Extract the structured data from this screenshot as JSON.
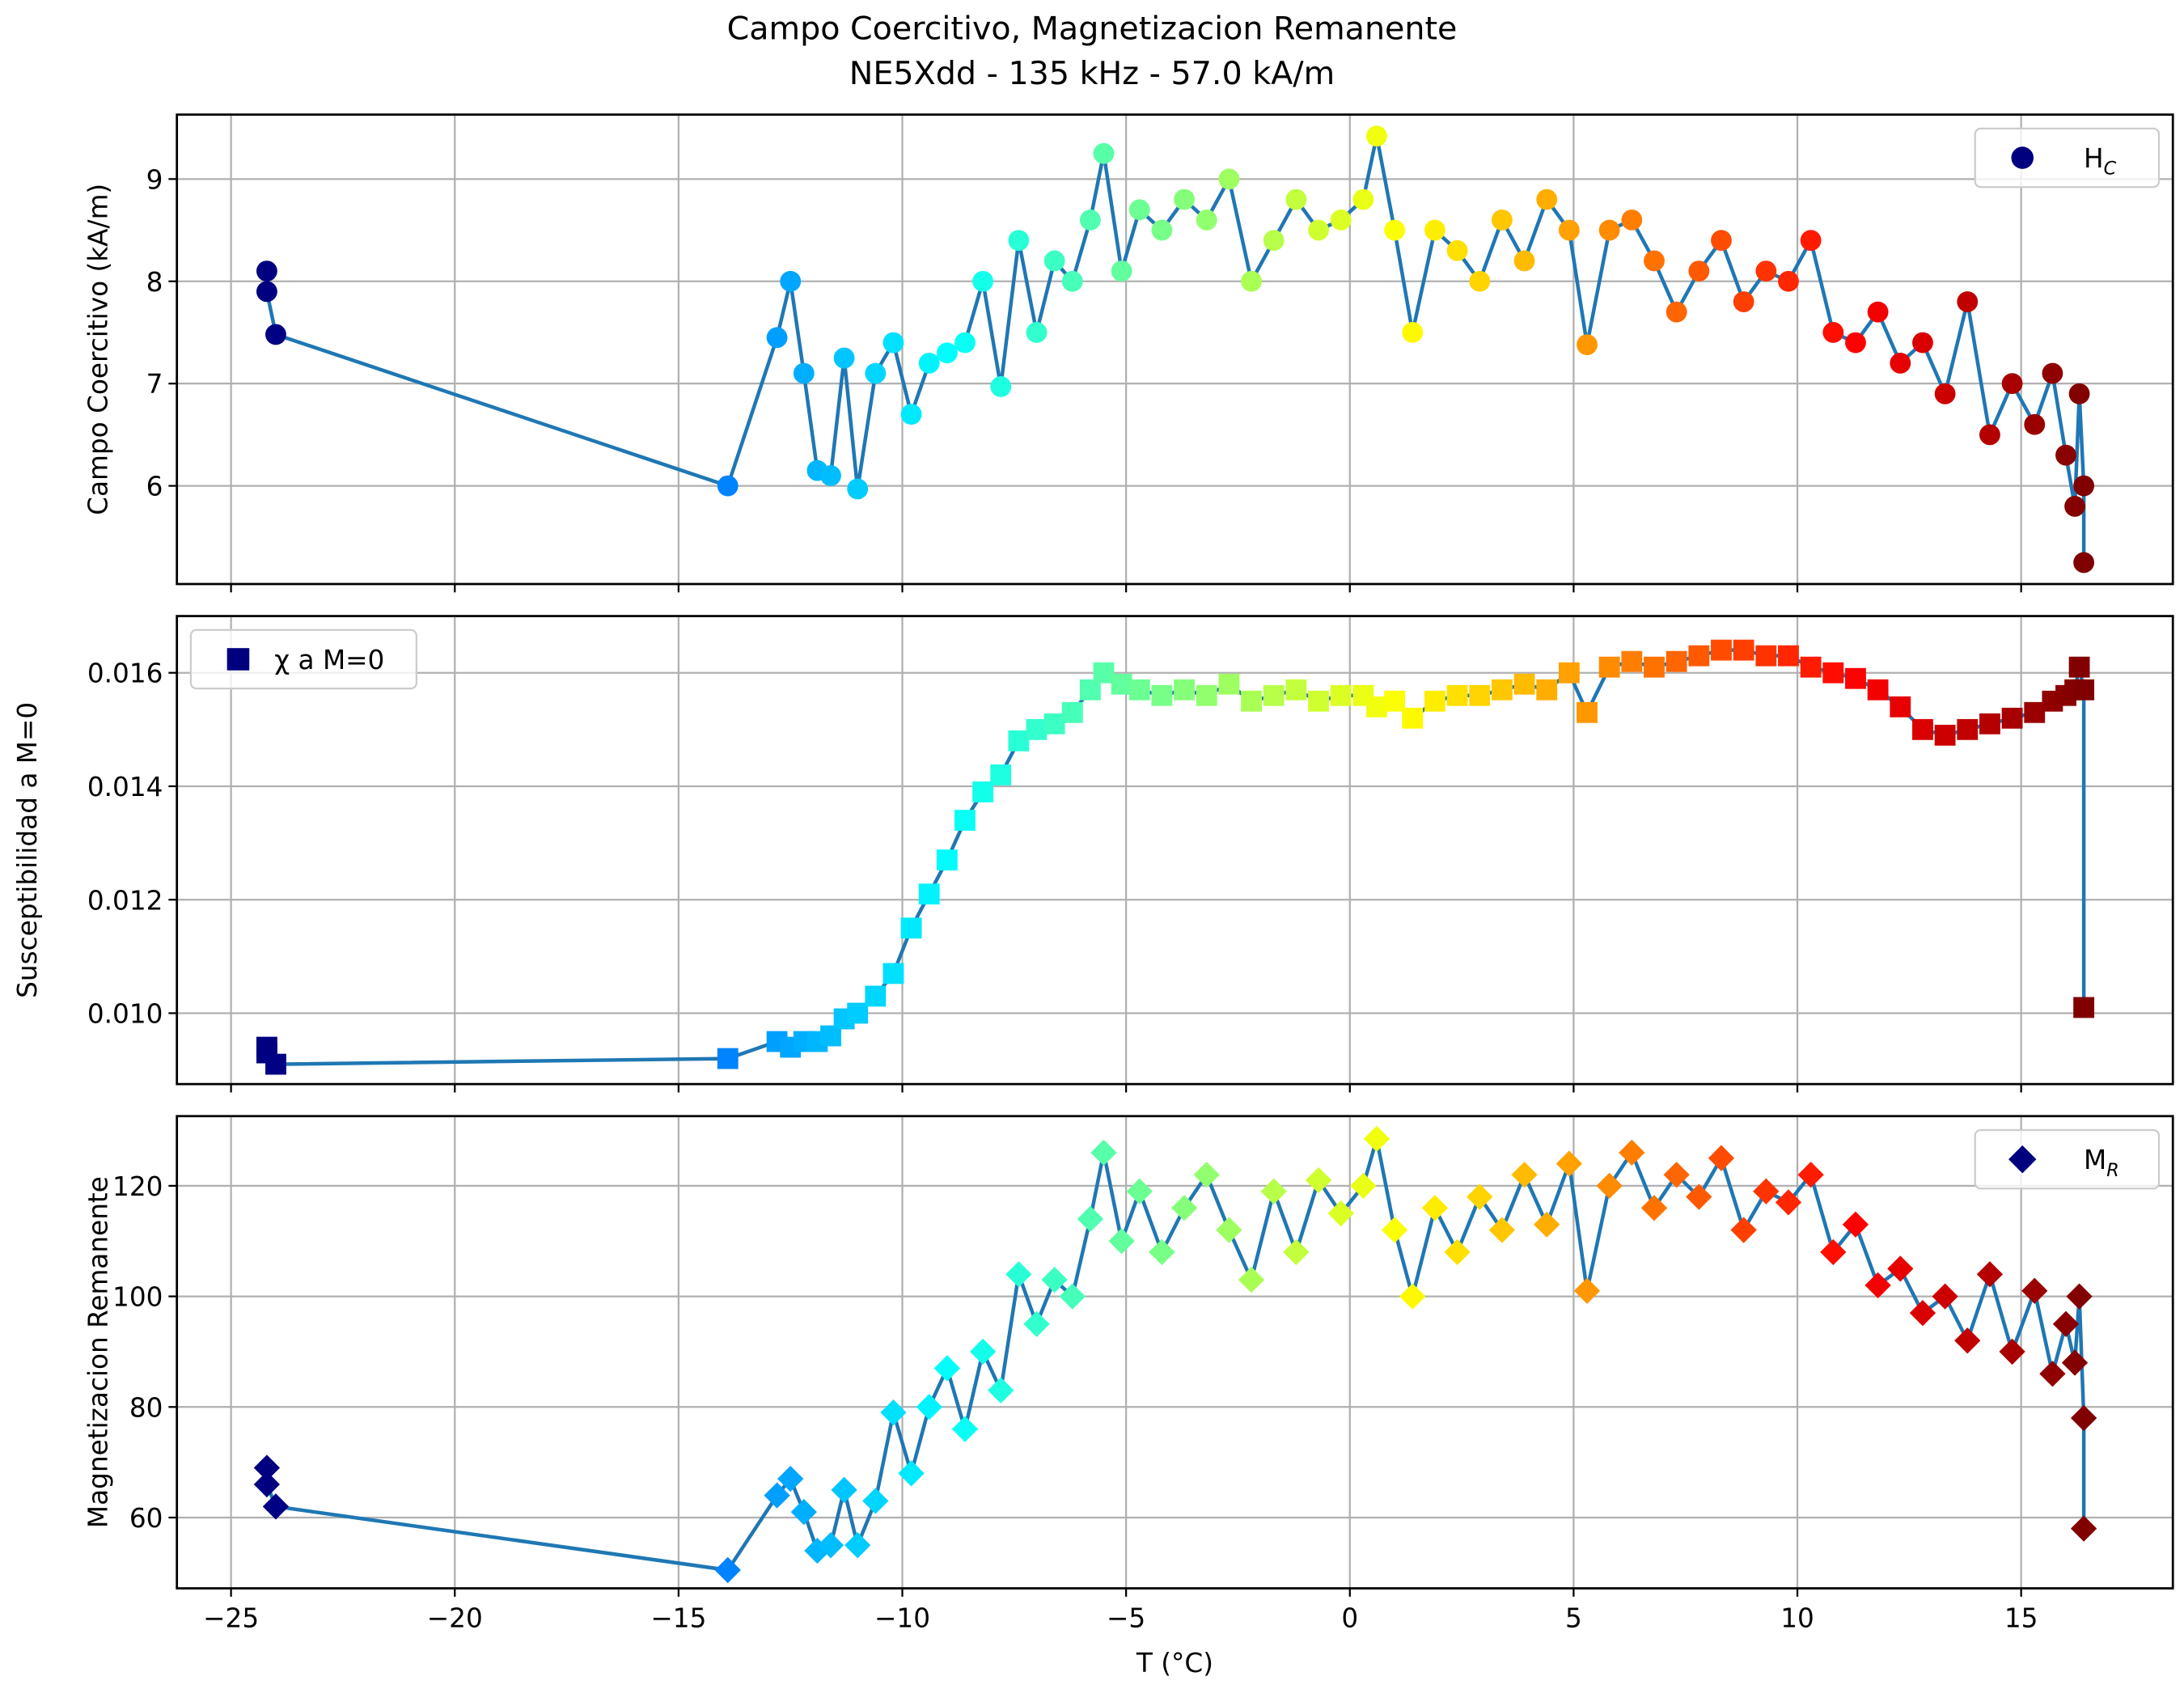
{
  "title": "Campo Coercitivo, Magnetizacion Remanente",
  "subtitle": "NE5Xdd - 135 kHz - 57.0 kA/m",
  "chart_data": [
    {
      "type": "line",
      "ylabel": "Campo Coercitivo (kA/m)",
      "marker": "circle",
      "line_color": "#1f77b4",
      "colormap": "jet",
      "legend": "upper right",
      "legend_color": "#00007f",
      "grid": true,
      "series": [
        {
          "name": "H",
          "name_sub": "C",
          "values": [
            8.1,
            7.9,
            7.48,
            6.0,
            7.45,
            8.0,
            7.1,
            6.15,
            6.1,
            7.25,
            5.97,
            7.1,
            7.4,
            6.7,
            7.2,
            7.3,
            7.4,
            8.0,
            6.97,
            8.4,
            7.5,
            8.2,
            8.0,
            8.6,
            9.25,
            8.1,
            8.7,
            8.5,
            8.8,
            8.6,
            9.0,
            8.0,
            8.4,
            8.8,
            8.5,
            8.6,
            8.8,
            9.42,
            8.5,
            7.5,
            8.5,
            8.3,
            8.0,
            8.6,
            8.2,
            8.8,
            8.5,
            7.38,
            8.5,
            8.6,
            8.2,
            7.7,
            8.1,
            8.4,
            7.8,
            8.1,
            8.0,
            8.4,
            7.5,
            7.4,
            7.7,
            7.2,
            7.4,
            6.9,
            7.8,
            6.5,
            7.0,
            6.6,
            7.1,
            6.3,
            5.8,
            6.9,
            6.0,
            5.25
          ]
        }
      ],
      "x": [
        -24.2,
        -24.2,
        -24.0,
        -13.9,
        -12.8,
        -12.5,
        -12.2,
        -11.9,
        -11.6,
        -11.3,
        -11.0,
        -10.6,
        -10.2,
        -9.8,
        -9.4,
        -9.0,
        -8.6,
        -8.2,
        -7.8,
        -7.4,
        -7.0,
        -6.6,
        -6.2,
        -5.8,
        -5.5,
        -5.1,
        -4.7,
        -4.2,
        -3.7,
        -3.2,
        -2.7,
        -2.2,
        -1.7,
        -1.2,
        -0.7,
        -0.2,
        0.3,
        0.6,
        1.0,
        1.4,
        1.9,
        2.4,
        2.9,
        3.4,
        3.9,
        4.4,
        4.9,
        5.3,
        5.8,
        6.3,
        6.8,
        7.3,
        7.8,
        8.3,
        8.8,
        9.3,
        9.8,
        10.3,
        10.8,
        11.3,
        11.8,
        12.3,
        12.8,
        13.3,
        13.8,
        14.3,
        14.8,
        15.3,
        15.7,
        16.0,
        16.2,
        16.3,
        16.4,
        16.4
      ],
      "xlim": [
        -26.21,
        18.39
      ],
      "xticks": [
        {
          "value": -25,
          "label": "−25"
        },
        {
          "value": -20,
          "label": "−20"
        },
        {
          "value": -15,
          "label": "−15"
        },
        {
          "value": -10,
          "label": "−10"
        },
        {
          "value": -5,
          "label": "−5"
        },
        0,
        5,
        10,
        15
      ],
      "ylim": [
        5.04,
        9.63
      ],
      "yticks": [
        6,
        7,
        8,
        9
      ]
    },
    {
      "type": "line",
      "ylabel": "Susceptibilidad a M=0",
      "marker": "square",
      "line_color": "#1f77b4",
      "colormap": "jet",
      "legend": "upper left",
      "legend_color": "#00007f",
      "grid": true,
      "series": [
        {
          "name": "χ a M=0",
          "values": [
            0.0094,
            0.0093,
            0.0091,
            0.0092,
            0.0095,
            0.0094,
            0.0095,
            0.0095,
            0.0096,
            0.0099,
            0.01,
            0.0103,
            0.0107,
            0.0115,
            0.0121,
            0.0127,
            0.0134,
            0.0139,
            0.0142,
            0.0148,
            0.015,
            0.0151,
            0.0153,
            0.0157,
            0.016,
            0.0158,
            0.0157,
            0.0156,
            0.0157,
            0.0156,
            0.0158,
            0.0155,
            0.0156,
            0.0157,
            0.0155,
            0.0156,
            0.0156,
            0.0154,
            0.0155,
            0.0152,
            0.0155,
            0.0156,
            0.0156,
            0.0157,
            0.0158,
            0.0157,
            0.016,
            0.0153,
            0.0161,
            0.0162,
            0.0161,
            0.0162,
            0.0163,
            0.0164,
            0.0164,
            0.0163,
            0.0163,
            0.0161,
            0.016,
            0.0159,
            0.0157,
            0.0154,
            0.015,
            0.0149,
            0.015,
            0.0151,
            0.0152,
            0.0153,
            0.0155,
            0.0156,
            0.0157,
            0.0161,
            0.0157,
            0.0101
          ]
        }
      ],
      "x": [
        -24.2,
        -24.2,
        -24.0,
        -13.9,
        -12.8,
        -12.5,
        -12.2,
        -11.9,
        -11.6,
        -11.3,
        -11.0,
        -10.6,
        -10.2,
        -9.8,
        -9.4,
        -9.0,
        -8.6,
        -8.2,
        -7.8,
        -7.4,
        -7.0,
        -6.6,
        -6.2,
        -5.8,
        -5.5,
        -5.1,
        -4.7,
        -4.2,
        -3.7,
        -3.2,
        -2.7,
        -2.2,
        -1.7,
        -1.2,
        -0.7,
        -0.2,
        0.3,
        0.6,
        1.0,
        1.4,
        1.9,
        2.4,
        2.9,
        3.4,
        3.9,
        4.4,
        4.9,
        5.3,
        5.8,
        6.3,
        6.8,
        7.3,
        7.8,
        8.3,
        8.8,
        9.3,
        9.8,
        10.3,
        10.8,
        11.3,
        11.8,
        12.3,
        12.8,
        13.3,
        13.8,
        14.3,
        14.8,
        15.3,
        15.7,
        16.0,
        16.2,
        16.3,
        16.4,
        16.4
      ],
      "xlim": [
        -26.21,
        18.39
      ],
      "xticks": [
        {
          "value": -25,
          "label": "−25"
        },
        {
          "value": -20,
          "label": "−20"
        },
        {
          "value": -15,
          "label": "−15"
        },
        {
          "value": -10,
          "label": "−10"
        },
        {
          "value": -5,
          "label": "−5"
        },
        0,
        5,
        10,
        15
      ],
      "ylim": [
        0.00875,
        0.017
      ],
      "yticks": [
        {
          "value": 0.01,
          "label": "0.010"
        },
        {
          "value": 0.012,
          "label": "0.012"
        },
        {
          "value": 0.014,
          "label": "0.014"
        },
        {
          "value": 0.016,
          "label": "0.016"
        }
      ]
    },
    {
      "type": "line",
      "ylabel": "Magnetizacion Remanente",
      "xlabel": "T (°C)",
      "marker": "diamond",
      "line_color": "#1f77b4",
      "colormap": "jet",
      "legend": "upper right",
      "legend_color": "#00007f",
      "grid": true,
      "series": [
        {
          "name": "M",
          "name_sub": "R",
          "values": [
            69,
            66,
            62,
            50.5,
            64,
            67,
            61,
            54,
            55,
            65,
            55,
            63,
            79,
            68,
            80,
            87,
            76,
            90,
            83,
            104,
            95,
            103,
            100,
            114,
            126,
            110,
            119,
            108,
            116,
            122,
            112,
            103,
            119,
            108,
            121,
            115,
            120,
            128.5,
            112,
            100,
            116,
            108,
            118,
            112,
            122,
            113,
            124,
            101,
            120,
            126,
            116,
            122,
            118,
            125,
            112,
            119,
            117,
            122,
            108,
            113,
            102,
            105,
            97,
            100,
            92,
            104,
            90,
            101,
            86,
            95,
            88,
            100,
            78,
            58
          ]
        }
      ],
      "x": [
        -24.2,
        -24.2,
        -24.0,
        -13.9,
        -12.8,
        -12.5,
        -12.2,
        -11.9,
        -11.6,
        -11.3,
        -11.0,
        -10.6,
        -10.2,
        -9.8,
        -9.4,
        -9.0,
        -8.6,
        -8.2,
        -7.8,
        -7.4,
        -7.0,
        -6.6,
        -6.2,
        -5.8,
        -5.5,
        -5.1,
        -4.7,
        -4.2,
        -3.7,
        -3.2,
        -2.7,
        -2.2,
        -1.7,
        -1.2,
        -0.7,
        -0.2,
        0.3,
        0.6,
        1.0,
        1.4,
        1.9,
        2.4,
        2.9,
        3.4,
        3.9,
        4.4,
        4.9,
        5.3,
        5.8,
        6.3,
        6.8,
        7.3,
        7.8,
        8.3,
        8.8,
        9.3,
        9.8,
        10.3,
        10.8,
        11.3,
        11.8,
        12.3,
        12.8,
        13.3,
        13.8,
        14.3,
        14.8,
        15.3,
        15.7,
        16.0,
        16.2,
        16.3,
        16.4,
        16.4
      ],
      "xlim": [
        -26.21,
        18.39
      ],
      "xticks": [
        {
          "value": -25,
          "label": "−25"
        },
        {
          "value": -20,
          "label": "−20"
        },
        {
          "value": -15,
          "label": "−15"
        },
        {
          "value": -10,
          "label": "−10"
        },
        {
          "value": -5,
          "label": "−5"
        },
        0,
        5,
        10,
        15
      ],
      "ylim": [
        47.2,
        132.6
      ],
      "yticks": [
        60,
        80,
        100,
        120
      ]
    }
  ]
}
